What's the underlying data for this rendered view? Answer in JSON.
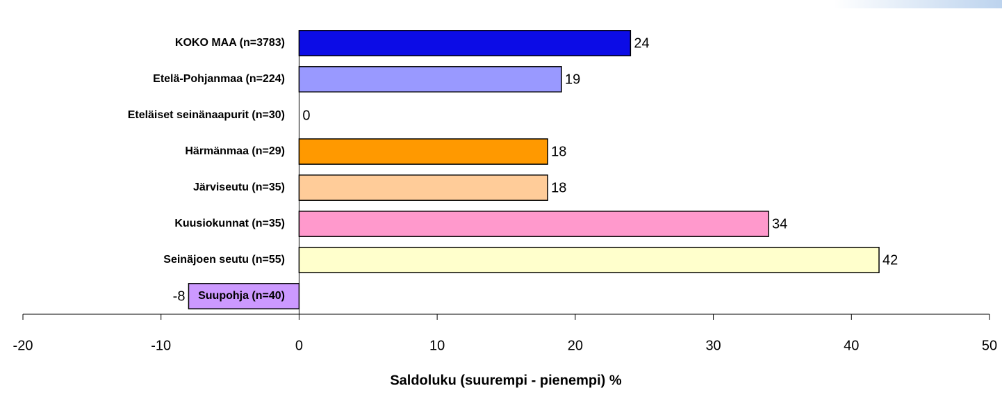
{
  "chart_data": {
    "type": "bar",
    "orientation": "horizontal",
    "categories": [
      "KOKO MAA (n=3783)",
      "Etelä-Pohjanmaa (n=224)",
      "Eteläiset seinänaapurit (n=30)",
      "Härmänmaa (n=29)",
      "Järviseutu (n=35)",
      "Kuusiokunnat (n=35)",
      "Seinäjoen seutu (n=55)",
      "Suupohja (n=40)"
    ],
    "values": [
      24,
      19,
      0,
      18,
      18,
      34,
      42,
      -8
    ],
    "colors": [
      "#0c0ce6",
      "#9999ff",
      "#ffffff",
      "#ff9900",
      "#ffcc99",
      "#ff99cc",
      "#ffffcc",
      "#cc99ff"
    ],
    "xlim": [
      -20,
      50
    ],
    "xticks": [
      -20,
      -10,
      0,
      10,
      20,
      30,
      40,
      50
    ],
    "xlabel": "Saldoluku (suurempi - pienempi) %",
    "grid": false
  }
}
